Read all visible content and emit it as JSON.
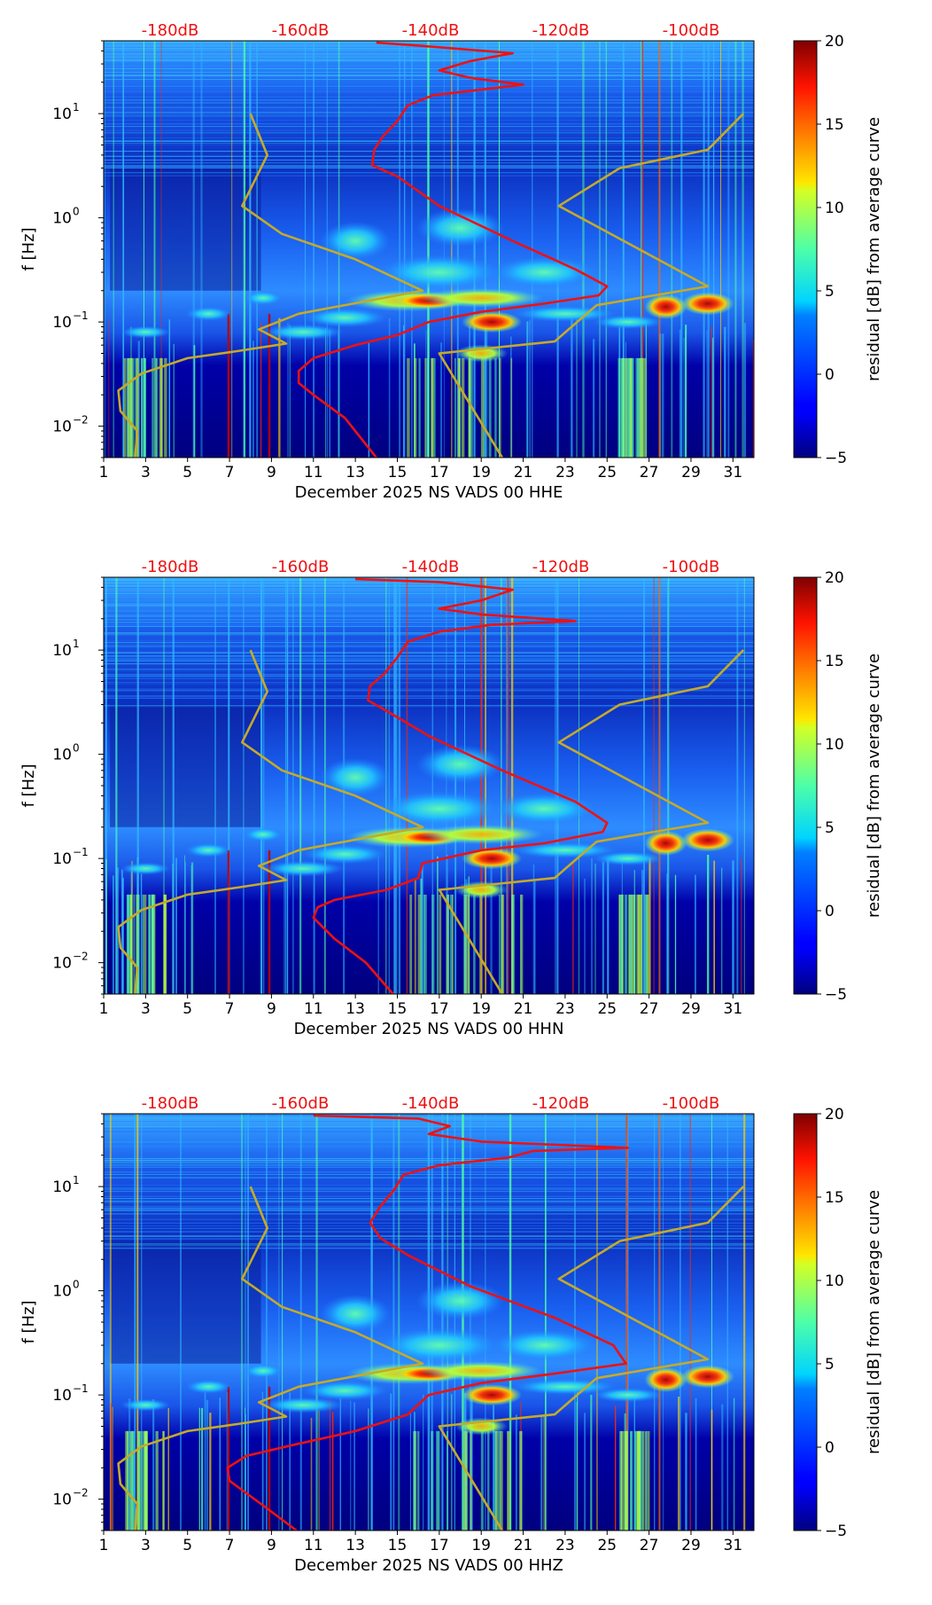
{
  "chart_data": [
    {
      "type": "heatmap",
      "title": "",
      "xlabel": "December 2025 NS VADS 00 HHE",
      "ylabel": "f [Hz]",
      "x_ticks": [
        "1",
        "3",
        "5",
        "7",
        "9",
        "11",
        "13",
        "15",
        "17",
        "19",
        "21",
        "23",
        "25",
        "27",
        "29",
        "31"
      ],
      "xlim": [
        1,
        32
      ],
      "y_scale": "log",
      "ylim": [
        0.005,
        50
      ],
      "y_ticks": [
        {
          "value": 0.01,
          "base": "10",
          "exp": "−2"
        },
        {
          "value": 0.1,
          "base": "10",
          "exp": "−1"
        },
        {
          "value": 1,
          "base": "10",
          "exp": "0"
        },
        {
          "value": 10,
          "base": "10",
          "exp": "1"
        }
      ],
      "top_axis_labels": [
        "-180dB",
        "-160dB",
        "-140dB",
        "-120dB",
        "-100dB"
      ],
      "colorbar": {
        "label": "residual [dB] from average curve",
        "min": -5,
        "max": 20,
        "ticks": [
          "20",
          "15",
          "10",
          "5",
          "0",
          "−5"
        ]
      },
      "series": [
        {
          "name": "average PSD (red)",
          "color": "#ee1111",
          "points": [
            [
              14,
              0.005
            ],
            [
              12.5,
              0.012
            ],
            [
              11,
              0.02
            ],
            [
              10.3,
              0.026
            ],
            [
              10.3,
              0.034
            ],
            [
              11,
              0.045
            ],
            [
              13,
              0.06
            ],
            [
              15,
              0.075
            ],
            [
              16.5,
              0.1
            ],
            [
              19,
              0.125
            ],
            [
              22,
              0.15
            ],
            [
              24.6,
              0.18
            ],
            [
              25,
              0.22
            ],
            [
              23.5,
              0.32
            ],
            [
              20.5,
              0.6
            ],
            [
              17,
              1.3
            ],
            [
              15,
              2.5
            ],
            [
              13.8,
              3.2
            ],
            [
              13.9,
              4.5
            ],
            [
              14.3,
              6
            ],
            [
              15,
              8.5
            ],
            [
              15.5,
              12
            ],
            [
              16.7,
              15
            ],
            [
              19,
              17
            ],
            [
              21,
              19
            ],
            [
              18.5,
              22
            ],
            [
              17,
              26
            ],
            [
              18.5,
              32
            ],
            [
              20.5,
              38
            ],
            [
              16,
              45
            ],
            [
              14,
              48
            ]
          ]
        },
        {
          "name": "noise model (olive)",
          "color": "#c4aa2a",
          "points": [
            [
              2.5,
              0.005
            ],
            [
              2.6,
              0.009
            ],
            [
              1.8,
              0.014
            ],
            [
              1.7,
              0.022
            ],
            [
              2.8,
              0.032
            ],
            [
              5,
              0.045
            ],
            [
              7.5,
              0.053
            ],
            [
              9.7,
              0.062
            ],
            [
              8.4,
              0.085
            ],
            [
              10.3,
              0.12
            ],
            [
              16.2,
              0.2
            ],
            [
              13,
              0.4
            ],
            [
              9.5,
              0.7
            ],
            [
              7.6,
              1.3
            ],
            [
              8.8,
              4
            ],
            [
              8,
              10
            ]
          ]
        },
        {
          "name": "noise model 2 (olive)",
          "color": "#c4aa2a",
          "points": [
            [
              20,
              0.005
            ],
            [
              17,
              0.05
            ],
            [
              22.5,
              0.065
            ],
            [
              24.5,
              0.145
            ],
            [
              29.8,
              0.22
            ],
            [
              22.7,
              1.3
            ],
            [
              25.6,
              3
            ],
            [
              29.8,
              4.5
            ],
            [
              31.5,
              10
            ]
          ]
        }
      ]
    },
    {
      "type": "heatmap",
      "title": "",
      "xlabel": "December 2025 NS VADS 00 HHN",
      "ylabel": "f [Hz]",
      "x_ticks": [
        "1",
        "3",
        "5",
        "7",
        "9",
        "11",
        "13",
        "15",
        "17",
        "19",
        "21",
        "23",
        "25",
        "27",
        "29",
        "31"
      ],
      "xlim": [
        1,
        32
      ],
      "y_scale": "log",
      "ylim": [
        0.005,
        50
      ],
      "y_ticks": [
        {
          "value": 0.01,
          "base": "10",
          "exp": "−2"
        },
        {
          "value": 0.1,
          "base": "10",
          "exp": "−1"
        },
        {
          "value": 1,
          "base": "10",
          "exp": "0"
        },
        {
          "value": 10,
          "base": "10",
          "exp": "1"
        }
      ],
      "top_axis_labels": [
        "-180dB",
        "-160dB",
        "-140dB",
        "-120dB",
        "-100dB"
      ],
      "colorbar": {
        "label": "residual [dB] from average curve",
        "min": -5,
        "max": 20,
        "ticks": [
          "20",
          "15",
          "10",
          "5",
          "0",
          "−5"
        ]
      },
      "series": [
        {
          "name": "average PSD (red)",
          "color": "#ee1111",
          "points": [
            [
              14.8,
              0.005
            ],
            [
              13.5,
              0.01
            ],
            [
              12,
              0.017
            ],
            [
              11,
              0.027
            ],
            [
              11.2,
              0.034
            ],
            [
              12,
              0.04
            ],
            [
              14.5,
              0.05
            ],
            [
              16,
              0.065
            ],
            [
              16.2,
              0.09
            ],
            [
              19,
              0.12
            ],
            [
              22,
              0.14
            ],
            [
              24.8,
              0.18
            ],
            [
              25,
              0.22
            ],
            [
              23.5,
              0.35
            ],
            [
              20,
              0.7
            ],
            [
              16.5,
              1.5
            ],
            [
              14.5,
              2.6
            ],
            [
              13.6,
              3.3
            ],
            [
              13.7,
              4.5
            ],
            [
              14.4,
              6
            ],
            [
              15,
              8.5
            ],
            [
              15.5,
              12
            ],
            [
              17,
              15
            ],
            [
              19.5,
              17.5
            ],
            [
              23.5,
              19
            ],
            [
              19,
              22
            ],
            [
              17,
              25
            ],
            [
              19,
              30
            ],
            [
              20.5,
              38
            ],
            [
              17,
              45
            ],
            [
              13,
              48
            ]
          ]
        },
        {
          "name": "noise model (olive)",
          "color": "#c4aa2a",
          "points": [
            [
              2.5,
              0.005
            ],
            [
              2.6,
              0.009
            ],
            [
              1.8,
              0.014
            ],
            [
              1.7,
              0.022
            ],
            [
              2.8,
              0.032
            ],
            [
              5,
              0.045
            ],
            [
              7.5,
              0.053
            ],
            [
              9.7,
              0.062
            ],
            [
              8.4,
              0.085
            ],
            [
              10.3,
              0.12
            ],
            [
              16.2,
              0.2
            ],
            [
              13,
              0.4
            ],
            [
              9.5,
              0.7
            ],
            [
              7.6,
              1.3
            ],
            [
              8.8,
              4
            ],
            [
              8,
              10
            ]
          ]
        },
        {
          "name": "noise model 2 (olive)",
          "color": "#c4aa2a",
          "points": [
            [
              20,
              0.005
            ],
            [
              17,
              0.05
            ],
            [
              22.5,
              0.065
            ],
            [
              24.5,
              0.145
            ],
            [
              29.8,
              0.22
            ],
            [
              22.7,
              1.3
            ],
            [
              25.6,
              3
            ],
            [
              29.8,
              4.5
            ],
            [
              31.5,
              10
            ]
          ]
        }
      ]
    },
    {
      "type": "heatmap",
      "title": "",
      "xlabel": "December 2025 NS VADS 00 HHZ",
      "ylabel": "f [Hz]",
      "x_ticks": [
        "1",
        "3",
        "5",
        "7",
        "9",
        "11",
        "13",
        "15",
        "17",
        "19",
        "21",
        "23",
        "25",
        "27",
        "29",
        "31"
      ],
      "xlim": [
        1,
        32
      ],
      "y_scale": "log",
      "ylim": [
        0.005,
        50
      ],
      "y_ticks": [
        {
          "value": 0.01,
          "base": "10",
          "exp": "−2"
        },
        {
          "value": 0.1,
          "base": "10",
          "exp": "−1"
        },
        {
          "value": 1,
          "base": "10",
          "exp": "0"
        },
        {
          "value": 10,
          "base": "10",
          "exp": "1"
        }
      ],
      "top_axis_labels": [
        "-180dB",
        "-160dB",
        "-140dB",
        "-120dB",
        "-100dB"
      ],
      "colorbar": {
        "label": "residual [dB] from average curve",
        "min": -5,
        "max": 20,
        "ticks": [
          "20",
          "15",
          "10",
          "5",
          "0",
          "−5"
        ]
      },
      "series": [
        {
          "name": "average PSD (red)",
          "color": "#ee1111",
          "points": [
            [
              10.2,
              0.005
            ],
            [
              8.5,
              0.009
            ],
            [
              7,
              0.015
            ],
            [
              6.9,
              0.02
            ],
            [
              7.8,
              0.026
            ],
            [
              10,
              0.033
            ],
            [
              13,
              0.045
            ],
            [
              15.5,
              0.065
            ],
            [
              16.5,
              0.1
            ],
            [
              19,
              0.13
            ],
            [
              22.5,
              0.16
            ],
            [
              25.9,
              0.2
            ],
            [
              25.3,
              0.3
            ],
            [
              22.5,
              0.55
            ],
            [
              18.5,
              1.1
            ],
            [
              15.5,
              2.2
            ],
            [
              14.2,
              3.2
            ],
            [
              13.7,
              4.5
            ],
            [
              14.2,
              6.5
            ],
            [
              14.8,
              9
            ],
            [
              15.3,
              13
            ],
            [
              17,
              16
            ],
            [
              20.3,
              19
            ],
            [
              21.5,
              22
            ],
            [
              26,
              23.5
            ],
            [
              19,
              27
            ],
            [
              16.5,
              32
            ],
            [
              17.5,
              38
            ],
            [
              16,
              45
            ],
            [
              11,
              48
            ]
          ]
        },
        {
          "name": "noise model (olive)",
          "color": "#c4aa2a",
          "points": [
            [
              2.5,
              0.005
            ],
            [
              2.6,
              0.009
            ],
            [
              1.8,
              0.014
            ],
            [
              1.7,
              0.022
            ],
            [
              2.8,
              0.032
            ],
            [
              5,
              0.045
            ],
            [
              7.5,
              0.053
            ],
            [
              9.7,
              0.062
            ],
            [
              8.4,
              0.085
            ],
            [
              10.3,
              0.12
            ],
            [
              16.2,
              0.2
            ],
            [
              13,
              0.4
            ],
            [
              9.5,
              0.7
            ],
            [
              7.6,
              1.3
            ],
            [
              8.8,
              4
            ],
            [
              8,
              10
            ]
          ]
        },
        {
          "name": "noise model 2 (olive)",
          "color": "#c4aa2a",
          "points": [
            [
              20,
              0.005
            ],
            [
              17,
              0.05
            ],
            [
              22.5,
              0.065
            ],
            [
              24.5,
              0.145
            ],
            [
              29.8,
              0.22
            ],
            [
              22.7,
              1.3
            ],
            [
              25.6,
              3
            ],
            [
              29.8,
              4.5
            ],
            [
              31.5,
              10
            ]
          ]
        }
      ]
    }
  ]
}
